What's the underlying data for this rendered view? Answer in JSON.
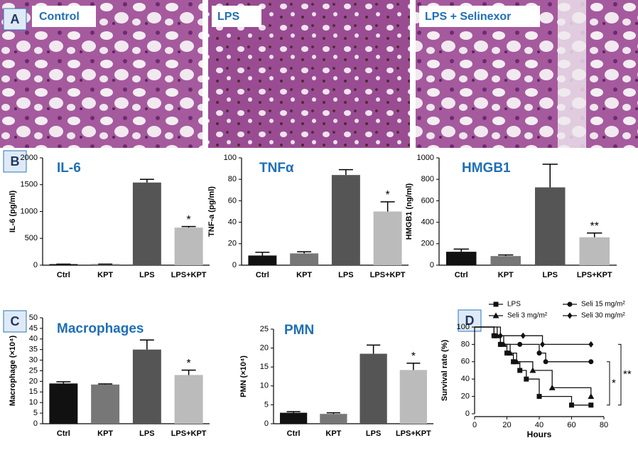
{
  "panel_labels": [
    "A",
    "B",
    "C",
    "D"
  ],
  "images": [
    {
      "label": "Control"
    },
    {
      "label": "LPS"
    },
    {
      "label": "LPS + Selinexor"
    }
  ],
  "chart_data": [
    {
      "type": "bar",
      "title": "IL-6",
      "ylabel": "IL-6 (pg/ml)",
      "categories": [
        "Ctrl",
        "KPT",
        "LPS",
        "LPS+KPT"
      ],
      "values": [
        20,
        20,
        1540,
        700
      ],
      "errors": [
        0,
        0,
        60,
        20
      ],
      "colors": [
        "#111111",
        "#777777",
        "#555555",
        "#bbbbbb"
      ],
      "significance": [
        null,
        null,
        null,
        "*"
      ],
      "ylim": [
        0,
        2000
      ],
      "yticks": [
        0,
        500,
        1000,
        1500,
        2000
      ]
    },
    {
      "type": "bar",
      "title": "TNFα",
      "ylabel": "TNF-a (pg/ml)",
      "categories": [
        "Ctrl",
        "KPT",
        "LPS",
        "LPS+KPT"
      ],
      "values": [
        9,
        11,
        84,
        50
      ],
      "errors": [
        3,
        1.5,
        5,
        9
      ],
      "colors": [
        "#111111",
        "#777777",
        "#555555",
        "#bbbbbb"
      ],
      "significance": [
        null,
        null,
        null,
        "*"
      ],
      "ylim": [
        0,
        100
      ],
      "yticks": [
        0,
        20,
        40,
        60,
        80,
        100
      ]
    },
    {
      "type": "bar",
      "title": "HMGB1",
      "ylabel": "HMGB1 (ng/ml)",
      "categories": [
        "Ctrl",
        "KPT",
        "LPS",
        "LPS+KPT"
      ],
      "values": [
        125,
        85,
        725,
        260
      ],
      "errors": [
        25,
        10,
        215,
        40
      ],
      "colors": [
        "#111111",
        "#777777",
        "#555555",
        "#bbbbbb"
      ],
      "significance": [
        null,
        null,
        null,
        "**"
      ],
      "ylim": [
        0,
        1000
      ],
      "yticks": [
        0,
        200,
        400,
        600,
        800,
        1000
      ]
    },
    {
      "type": "bar",
      "title": "Macrophages",
      "ylabel": "Macrophage (×10⁴)",
      "categories": [
        "Ctrl",
        "KPT",
        "LPS",
        "LPS+KPT"
      ],
      "values": [
        19,
        18.5,
        35,
        23
      ],
      "errors": [
        0.8,
        0.3,
        4.5,
        2.3
      ],
      "colors": [
        "#111111",
        "#777777",
        "#555555",
        "#bbbbbb"
      ],
      "significance": [
        null,
        null,
        null,
        "*"
      ],
      "ylim": [
        0,
        50
      ],
      "yticks": [
        0,
        5,
        10,
        15,
        20,
        25,
        30,
        35,
        40,
        45,
        50
      ]
    },
    {
      "type": "bar",
      "title": "PMN",
      "ylabel": "PMN (×10⁴)",
      "categories": [
        "Ctrl",
        "KPT",
        "LPS",
        "LPS+KPT"
      ],
      "values": [
        2.9,
        2.6,
        18.5,
        14.2
      ],
      "errors": [
        0.3,
        0.3,
        2.3,
        1.8
      ],
      "colors": [
        "#111111",
        "#777777",
        "#555555",
        "#bbbbbb"
      ],
      "significance": [
        null,
        null,
        null,
        "*"
      ],
      "ylim": [
        0,
        25
      ],
      "yticks": [
        0,
        5,
        10,
        15,
        20,
        25
      ]
    },
    {
      "type": "line",
      "xlabel": "Hours",
      "ylabel": "Survival rate (%)",
      "xlim": [
        0,
        80
      ],
      "xticks": [
        0,
        20,
        40,
        60,
        80
      ],
      "ylim": [
        0,
        100
      ],
      "yticks": [
        0,
        20,
        40,
        60,
        80,
        100
      ],
      "annotations": [
        "*",
        "**"
      ],
      "series": [
        {
          "name": "LPS",
          "marker": "square",
          "color": "#111111",
          "x": [
            0,
            12,
            16,
            20,
            24,
            28,
            32,
            40,
            60,
            72
          ],
          "values": [
            100,
            90,
            80,
            70,
            60,
            50,
            40,
            20,
            10,
            10
          ]
        },
        {
          "name": "Seli 3 mg/m²",
          "marker": "triangle",
          "color": "#111111",
          "x": [
            0,
            14,
            18,
            22,
            26,
            36,
            48,
            72
          ],
          "values": [
            100,
            90,
            80,
            70,
            60,
            50,
            30,
            20
          ]
        },
        {
          "name": "Seli 15 mg/m²",
          "marker": "circle",
          "color": "#111111",
          "x": [
            0,
            12,
            16,
            28,
            40,
            44,
            72
          ],
          "values": [
            100,
            90,
            80,
            80,
            70,
            60,
            60
          ]
        },
        {
          "name": "Seli 30 mg/m²",
          "marker": "diamond",
          "color": "#111111",
          "x": [
            0,
            16,
            30,
            42,
            72
          ],
          "values": [
            100,
            90,
            90,
            80,
            80
          ]
        }
      ]
    }
  ]
}
